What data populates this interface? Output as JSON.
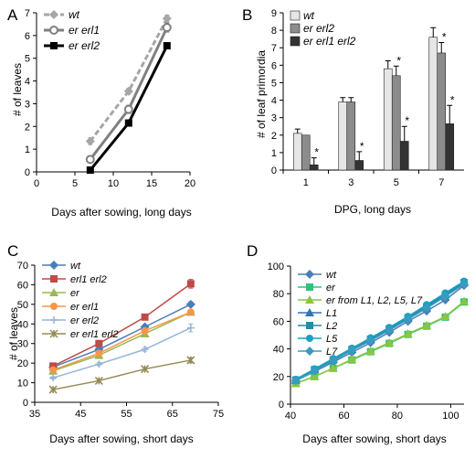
{
  "chart_data": [
    {
      "panel": "A",
      "type": "line",
      "xlabel": "Days after sowing, long days",
      "ylabel": "# of leaves",
      "xlim": [
        0,
        20
      ],
      "ylim": [
        0,
        7
      ],
      "xticks": [
        0,
        5,
        10,
        15,
        20
      ],
      "yticks": [
        0,
        1,
        2,
        3,
        4,
        5,
        6,
        7
      ],
      "legend_position": "top-left",
      "series": [
        {
          "name": "wt",
          "color": "#a6a6a6",
          "style": "dashed",
          "marker": "diamond",
          "x": [
            7,
            12,
            17
          ],
          "y": [
            1.35,
            3.55,
            6.75
          ],
          "err": [
            0.15,
            0.12,
            0.15
          ]
        },
        {
          "name": "er erl1",
          "color": "#808080",
          "style": "solid",
          "marker": "open-circle",
          "x": [
            7,
            12,
            17
          ],
          "y": [
            0.55,
            2.75,
            6.35
          ],
          "err": [
            0.12,
            0.18,
            0.2
          ]
        },
        {
          "name": "er erl2",
          "color": "#000000",
          "style": "solid",
          "marker": "square",
          "x": [
            7,
            12,
            17
          ],
          "y": [
            0.08,
            2.15,
            5.55
          ],
          "err": [
            0.05,
            0.1,
            0.1
          ]
        }
      ]
    },
    {
      "panel": "B",
      "type": "bar",
      "xlabel": "DPG, long days",
      "ylabel": "# of leaf primordia",
      "categories": [
        "1",
        "3",
        "5",
        "7"
      ],
      "ylim": [
        0,
        9
      ],
      "yticks": [
        0,
        1,
        2,
        3,
        4,
        5,
        6,
        7,
        8,
        9
      ],
      "legend_position": "top-left",
      "series": [
        {
          "name": "wt",
          "color": "#e6e6e6",
          "values": [
            2.1,
            3.9,
            5.8,
            7.6
          ],
          "err": [
            0.25,
            0.25,
            0.45,
            0.55
          ],
          "sig": [
            false,
            false,
            false,
            false
          ]
        },
        {
          "name": "er erl2",
          "color": "#8c8c8c",
          "values": [
            2.0,
            3.9,
            5.4,
            6.7
          ],
          "err": [
            0.0,
            0.25,
            0.55,
            0.6
          ],
          "sig": [
            false,
            false,
            true,
            true
          ]
        },
        {
          "name": "er erl1 erl2",
          "color": "#333333",
          "values": [
            0.3,
            0.55,
            1.65,
            2.65
          ],
          "err": [
            0.4,
            0.5,
            0.85,
            1.05
          ],
          "sig": [
            true,
            true,
            true,
            true
          ]
        }
      ],
      "significance_marker": "*"
    },
    {
      "panel": "C",
      "type": "line",
      "xlabel": "Days after sowing, short days",
      "ylabel": "# of leaves",
      "xlim": [
        35,
        75
      ],
      "ylim": [
        0,
        70
      ],
      "xticks": [
        35,
        45,
        55,
        65,
        75
      ],
      "yticks": [
        0,
        10,
        20,
        30,
        40,
        50,
        60,
        70
      ],
      "legend_position": "top-left",
      "series": [
        {
          "name": "wt",
          "color": "#4a7ebb",
          "marker": "diamond",
          "x": [
            39,
            49,
            59,
            69
          ],
          "y": [
            18,
            27,
            38.5,
            50
          ],
          "err": [
            0.8,
            0.8,
            1.0,
            1.2
          ]
        },
        {
          "name": "erl1 erl2",
          "color": "#be4b48",
          "marker": "square",
          "x": [
            39,
            49,
            59,
            69
          ],
          "y": [
            18.5,
            30,
            43.5,
            60.5
          ],
          "err": [
            0.8,
            1.0,
            1.0,
            2.2
          ]
        },
        {
          "name": "er",
          "color": "#98b954",
          "marker": "triangle",
          "x": [
            39,
            49,
            59,
            69
          ],
          "y": [
            16,
            24,
            35,
            46
          ],
          "err": [
            0.6,
            0.8,
            1.0,
            1.2
          ]
        },
        {
          "name": "er erl1",
          "color": "#f79646",
          "marker": "circle",
          "x": [
            39,
            49,
            59,
            69
          ],
          "y": [
            16.5,
            25,
            36.5,
            46
          ],
          "err": [
            0.6,
            0.8,
            1.0,
            1.2
          ]
        },
        {
          "name": "er erl2",
          "color": "#95b3d7",
          "marker": "plus",
          "x": [
            39,
            49,
            59,
            69
          ],
          "y": [
            12.5,
            19.5,
            27,
            38
          ],
          "err": [
            0.6,
            0.8,
            1.0,
            2.0
          ]
        },
        {
          "name": "er erl1 erl2",
          "color": "#948a54",
          "marker": "star",
          "x": [
            39,
            49,
            59,
            69
          ],
          "y": [
            6.5,
            11,
            17,
            21.5
          ],
          "err": [
            0.4,
            0.5,
            0.6,
            1.3
          ]
        }
      ]
    },
    {
      "panel": "D",
      "type": "line",
      "xlabel": "Days after sowing, short days",
      "ylabel": "",
      "xlim": [
        40,
        105
      ],
      "ylim": [
        0,
        100
      ],
      "xticks": [
        40,
        60,
        80,
        100
      ],
      "yticks": [
        0,
        20,
        40,
        60,
        80,
        100
      ],
      "legend_position": "top-left",
      "series": [
        {
          "name": "wt",
          "color": "#4a7ebb",
          "marker": "diamond",
          "x": [
            42,
            49,
            56,
            63,
            70,
            77,
            84,
            91,
            98,
            105
          ],
          "y": [
            17,
            23.5,
            30.5,
            37.5,
            44.5,
            52,
            60,
            67.5,
            75.5,
            86
          ]
        },
        {
          "name": "er",
          "color": "#2ec27e",
          "marker": "square",
          "x": [
            42,
            49,
            56,
            63,
            70,
            77,
            84,
            91,
            98,
            105
          ],
          "y": [
            15,
            20,
            26,
            32,
            38,
            44,
            50.5,
            56.5,
            63,
            74
          ]
        },
        {
          "name": "er from L1, L2, L5, L7",
          "color": "#8cc63f",
          "marker": "triangle",
          "x": [
            42,
            49,
            56,
            63,
            70,
            77,
            84,
            91,
            98,
            105
          ],
          "y": [
            15,
            20,
            26,
            32.5,
            38.5,
            44.5,
            51,
            57,
            63.5,
            74.5
          ]
        },
        {
          "name": "L1",
          "color": "#2e75b6",
          "marker": "triangle",
          "x": [
            42,
            49,
            56,
            63,
            70,
            77,
            84,
            91,
            98,
            105
          ],
          "y": [
            17.5,
            25,
            32.5,
            40,
            47.5,
            55,
            63,
            71,
            79.5,
            88.5
          ]
        },
        {
          "name": "L2",
          "color": "#1f8fa8",
          "marker": "square",
          "x": [
            42,
            49,
            56,
            63,
            70,
            77,
            84,
            91,
            98,
            105
          ],
          "y": [
            17.5,
            25,
            32,
            39.5,
            47,
            54.5,
            62.5,
            70.5,
            79,
            88
          ]
        },
        {
          "name": "L5",
          "color": "#1ba1c4",
          "marker": "circle",
          "x": [
            42,
            49,
            56,
            63,
            70,
            77,
            84,
            91,
            98,
            105
          ],
          "y": [
            18,
            25.5,
            33,
            40.5,
            48,
            55.5,
            63.5,
            72,
            80.5,
            89
          ]
        },
        {
          "name": "L7",
          "color": "#3a9bbd",
          "marker": "diamond",
          "x": [
            42,
            49,
            56,
            63,
            70,
            77,
            84,
            91,
            98,
            105
          ],
          "y": [
            17,
            24,
            31.5,
            39,
            46,
            53.5,
            61.5,
            69.5,
            78,
            87
          ]
        }
      ]
    }
  ]
}
